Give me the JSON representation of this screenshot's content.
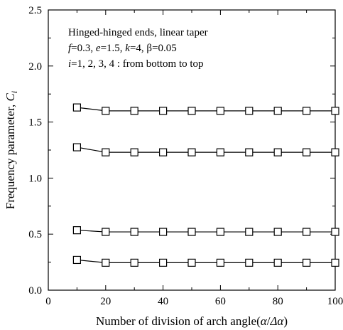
{
  "chart_data": {
    "type": "line",
    "xlabel_parts": [
      "Number of division of arch angle(",
      "α",
      "/",
      "Δα",
      ")"
    ],
    "ylabel_parts": [
      "Frequency parameter, ",
      "C",
      "i"
    ],
    "xlim": [
      0,
      100
    ],
    "ylim": [
      0,
      2.5
    ],
    "xticks": [
      0,
      20,
      40,
      60,
      80,
      100
    ],
    "yticks": [
      0.0,
      0.5,
      1.0,
      1.5,
      2.0,
      2.5
    ],
    "xtick_labels": [
      "0",
      "20",
      "40",
      "60",
      "80",
      "100"
    ],
    "ytick_labels": [
      "0.0",
      "0.5",
      "1.0",
      "1.5",
      "2.0",
      "2.5"
    ],
    "grid": false,
    "marker": "open-square",
    "annotation": {
      "line1": "Hinged-hinged ends, linear taper",
      "line2_parts": [
        "f",
        "=0.3, ",
        "e",
        "=1.5, ",
        "k",
        "=4, ",
        "β",
        "=0.05"
      ],
      "line3_parts": [
        "i",
        "=1, 2, 3, 4 : from bottom to top"
      ]
    },
    "x": [
      10,
      20,
      30,
      40,
      50,
      60,
      70,
      80,
      90,
      100
    ],
    "series": [
      {
        "values": [
          0.27,
          0.245,
          0.245,
          0.245,
          0.245,
          0.245,
          0.245,
          0.245,
          0.245,
          0.245
        ]
      },
      {
        "values": [
          0.535,
          0.52,
          0.52,
          0.52,
          0.52,
          0.52,
          0.52,
          0.52,
          0.52,
          0.52
        ]
      },
      {
        "values": [
          1.275,
          1.23,
          1.23,
          1.23,
          1.23,
          1.23,
          1.23,
          1.23,
          1.23,
          1.23
        ]
      },
      {
        "values": [
          1.63,
          1.6,
          1.6,
          1.6,
          1.6,
          1.6,
          1.6,
          1.6,
          1.6,
          1.6
        ]
      }
    ],
    "colors": {
      "line": "#000000",
      "marker_fill": "#ffffff",
      "axis": "#000000"
    }
  }
}
